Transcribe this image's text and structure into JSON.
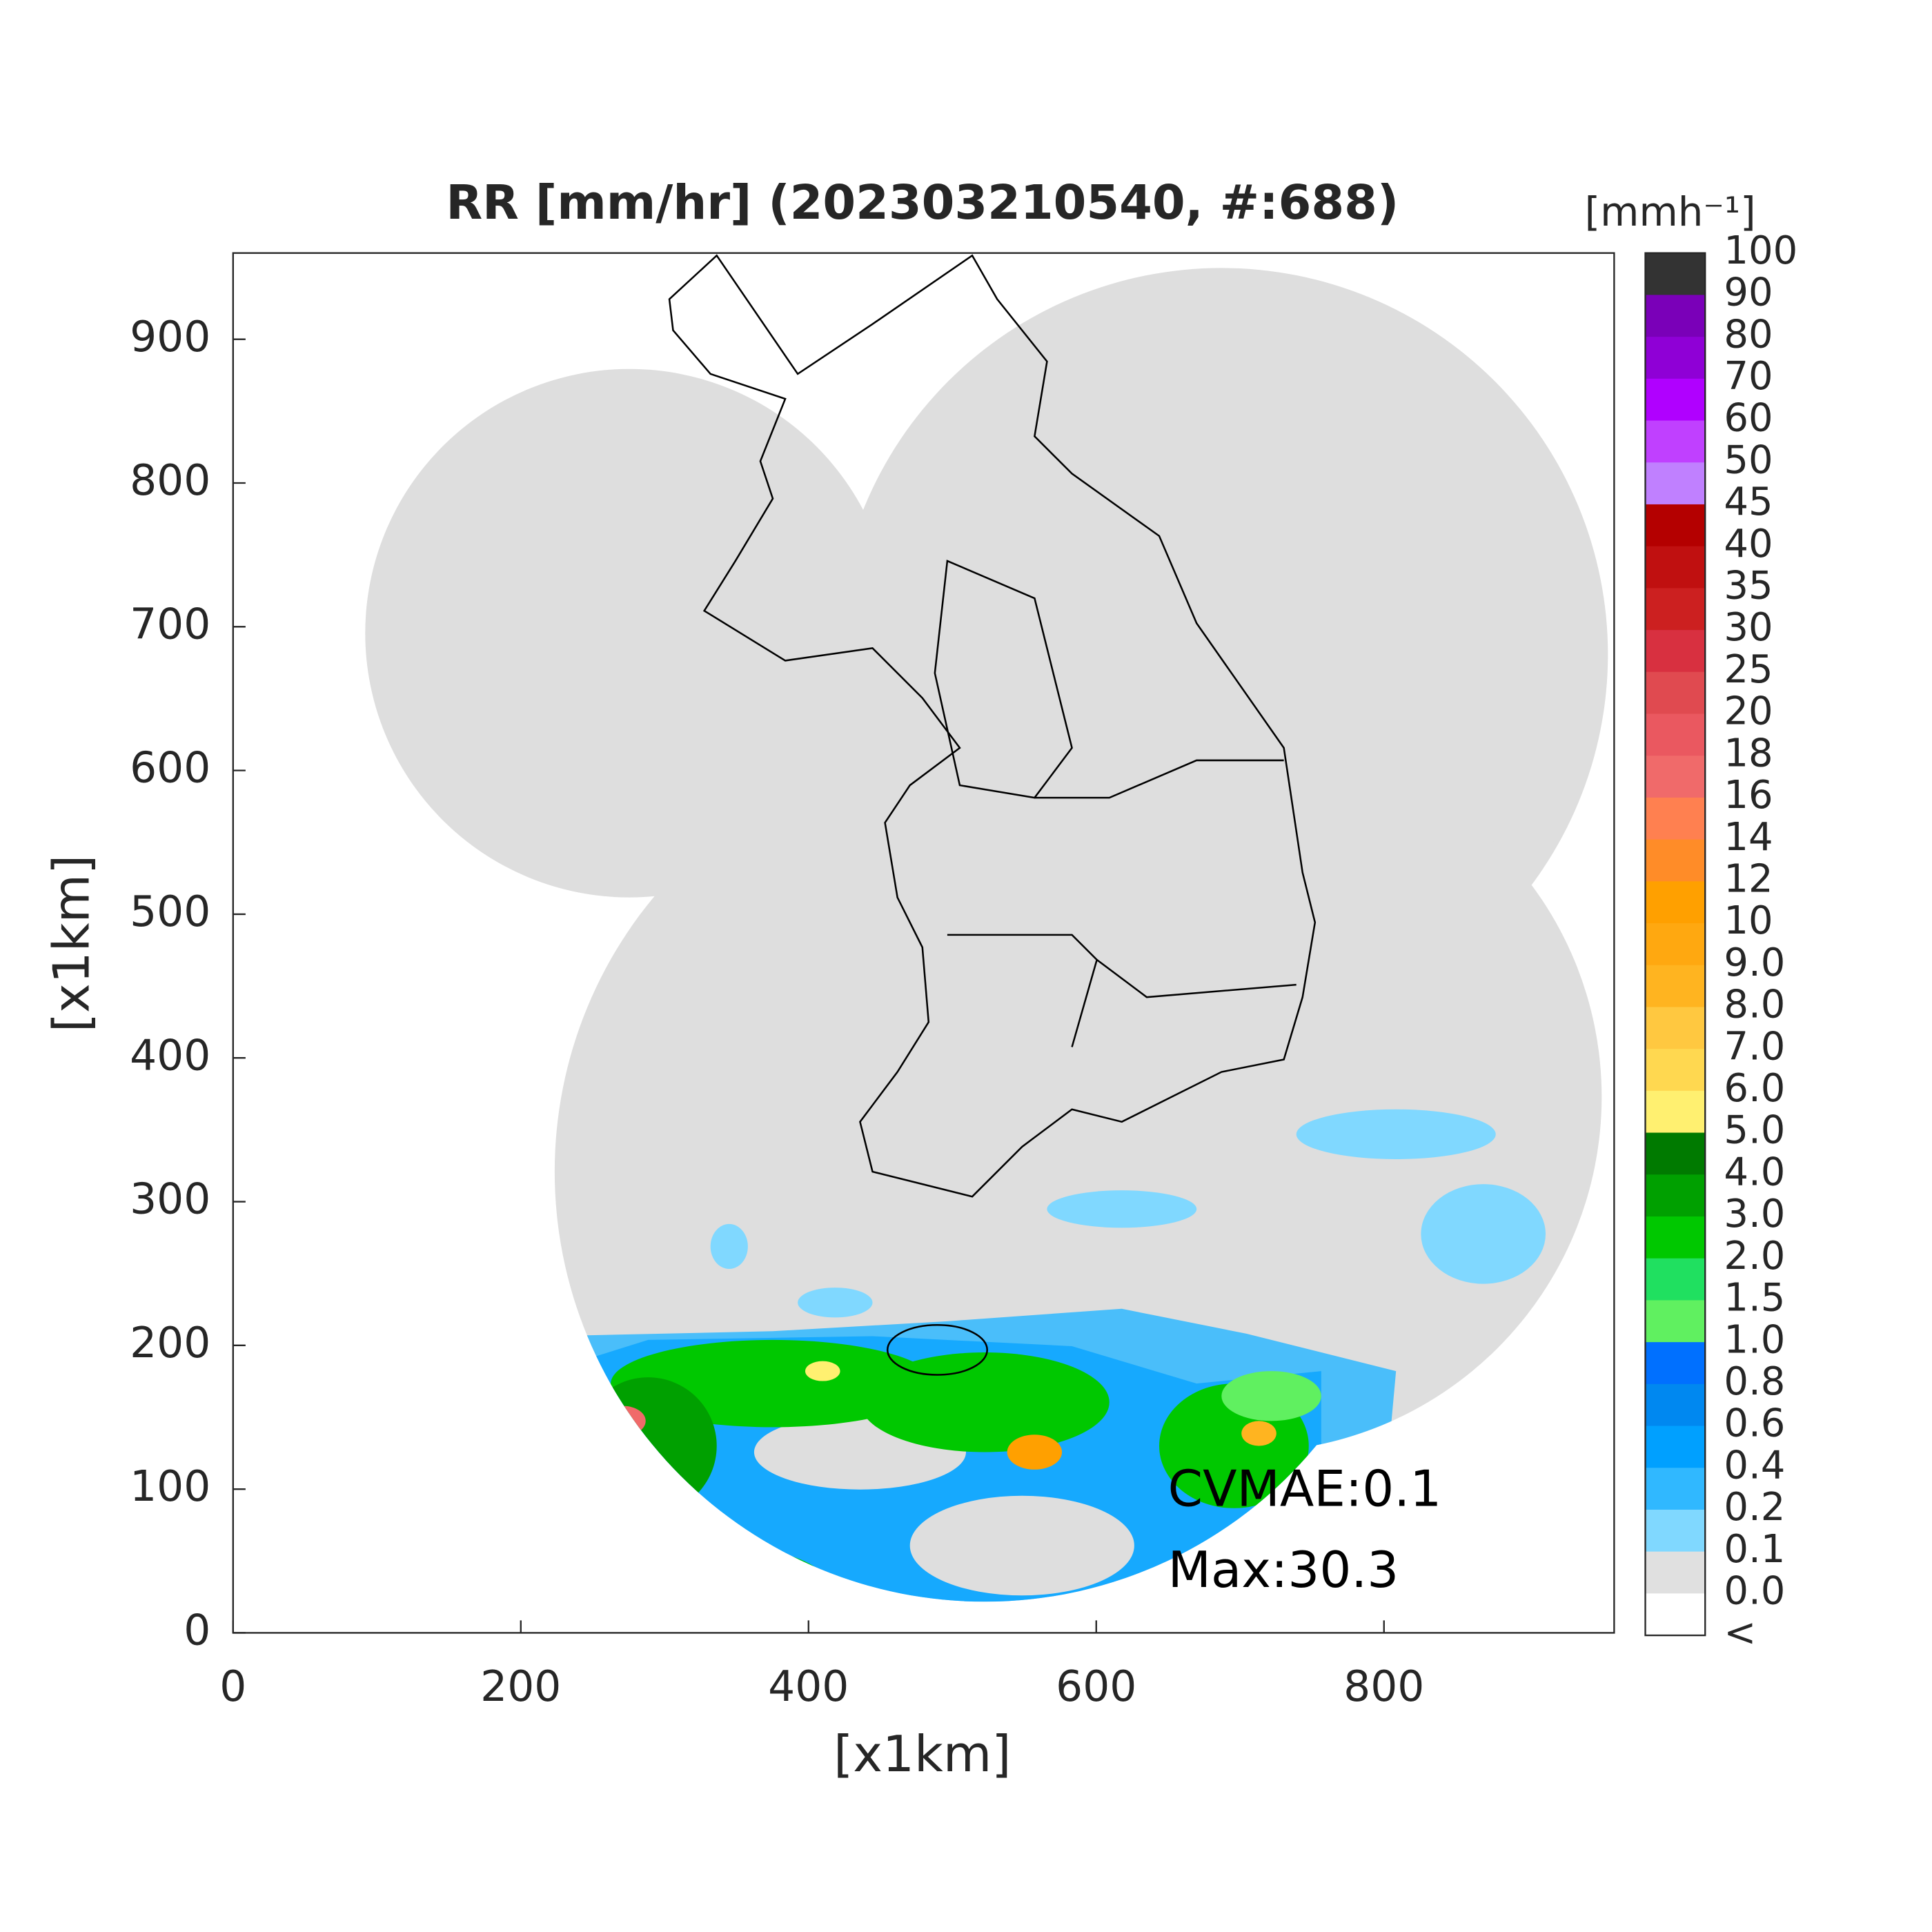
{
  "chart_data": {
    "type": "map",
    "title": "RR [mm/hr] (202303210540, #:688)",
    "xlabel": "[x1km]",
    "ylabel": "[x1km]",
    "xlim": [
      0,
      960
    ],
    "ylim": [
      0,
      960
    ],
    "xticks": [
      0,
      200,
      400,
      600,
      800
    ],
    "yticks": [
      0,
      100,
      200,
      300,
      400,
      500,
      600,
      700,
      800,
      900
    ],
    "annotations": [
      "CVMAE:0.1",
      "Max:30.3"
    ],
    "colorbar": {
      "label": "[mmh⁻¹]",
      "labels": [
        "100",
        "90",
        "80",
        "70",
        "60",
        "50",
        "45",
        "40",
        "35",
        "30",
        "25",
        "20",
        "18",
        "16",
        "14",
        "12",
        "10",
        "9.0",
        "8.0",
        "7.0",
        "6.0",
        "5.0",
        "4.0",
        "3.0",
        "2.0",
        "1.5",
        "1.0",
        "0.8",
        "0.6",
        "0.4",
        "0.2",
        "0.1",
        "0.0",
        "<"
      ],
      "colors": [
        "#333333",
        "#7a00b8",
        "#8f00d6",
        "#b000ff",
        "#c040ff",
        "#c080ff",
        "#b40000",
        "#c01010",
        "#cc2020",
        "#d83040",
        "#e04a50",
        "#ea5860",
        "#f06a6a",
        "#ff8050",
        "#ff8c28",
        "#ffa000",
        "#ffa810",
        "#ffb420",
        "#ffc840",
        "#ffd850",
        "#fff070",
        "#007a00",
        "#00a000",
        "#00c800",
        "#20e060",
        "#60f060",
        "#0070ff",
        "#0088f0",
        "#00a0ff",
        "#30b8ff",
        "#80d8ff",
        "#e0e0e0",
        "#ffffff"
      ]
    }
  }
}
